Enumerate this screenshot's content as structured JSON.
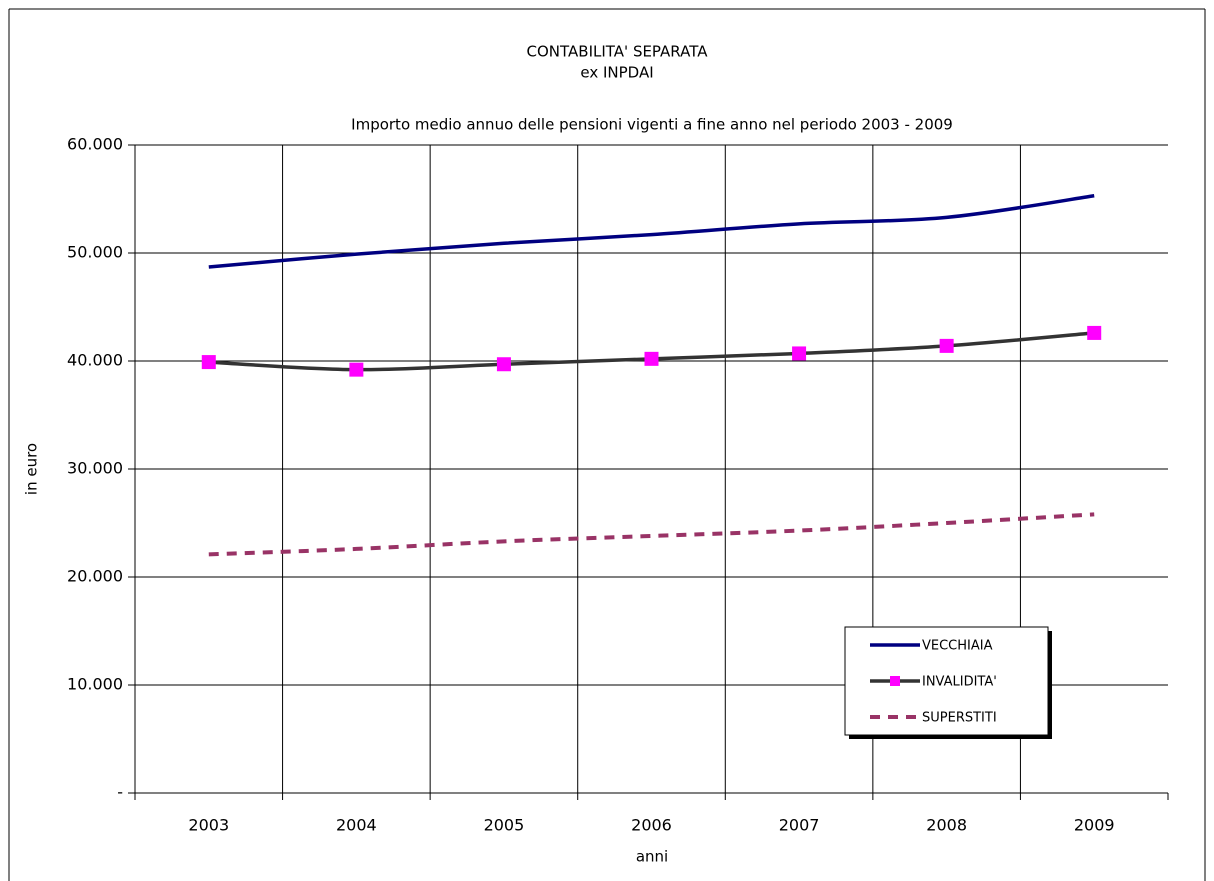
{
  "chart_data": {
    "type": "line",
    "title": [
      "CONTABILITA' SEPARATA",
      "ex INPDAI"
    ],
    "subtitle": "Importo medio annuo delle pensioni vigenti a fine anno nel periodo 2003 - 2009",
    "x_label": "anni",
    "y_label": "in euro",
    "categories": [
      "2003",
      "2004",
      "2005",
      "2006",
      "2007",
      "2008",
      "2009"
    ],
    "series": [
      {
        "name": "VECCHIAIA",
        "color": "#000080",
        "line_style": "solid",
        "marker": "none",
        "values": [
          48700,
          49900,
          50900,
          51700,
          52700,
          53300,
          55300
        ]
      },
      {
        "name": "INVALIDITA'",
        "color": "#333333",
        "line_style": "solid",
        "marker": "square",
        "marker_color": "#ff00ff",
        "values": [
          39900,
          39200,
          39700,
          40200,
          40700,
          41400,
          42600
        ]
      },
      {
        "name": "SUPERSTITI",
        "color": "#993366",
        "line_style": "dashed",
        "marker": "none",
        "values": [
          22100,
          22600,
          23300,
          23800,
          24300,
          25000,
          25800
        ]
      }
    ],
    "ylim": [
      0,
      60000
    ],
    "yticks": [
      {
        "value": 0,
        "label": "-"
      },
      {
        "value": 10000,
        "label": "10.000"
      },
      {
        "value": 20000,
        "label": "20.000"
      },
      {
        "value": 30000,
        "label": "30.000"
      },
      {
        "value": 40000,
        "label": "40.000"
      },
      {
        "value": 50000,
        "label": "50.000"
      },
      {
        "value": 60000,
        "label": "60.000"
      }
    ],
    "grid": true,
    "smooth": true,
    "legend": "lower right"
  }
}
